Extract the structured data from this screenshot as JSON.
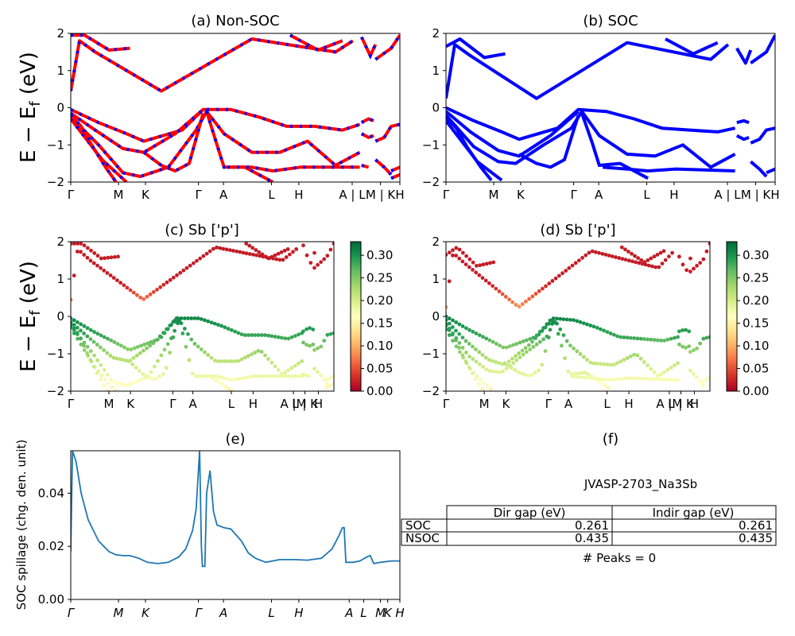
{
  "chart_data": [
    {
      "type": "line",
      "title": "(a) Non-SOC",
      "ylabel": "E − E_f (eV)",
      "ylim": [
        -2,
        2
      ],
      "yticks": [
        "2",
        "1",
        "0",
        "−1",
        "−2"
      ],
      "xticks": [
        "Γ",
        "M",
        "K",
        "Γ",
        "A",
        "L",
        "H",
        "A | L",
        "M | K",
        "H"
      ],
      "series": [
        {
          "color": "#ff0000",
          "dash_color": "#0000ff",
          "bands": [
            [
              [
                0,
                0.45
              ],
              [
                0.25,
                1.8
              ],
              [
                0.7,
                1.5
              ],
              [
                2.6,
                0.45
              ],
              [
                5.2,
                1.85
              ],
              [
                7.6,
                1.5
              ],
              [
                8.1,
                1.8
              ]
            ],
            [
              [
                0,
                1.95
              ],
              [
                0.4,
                1.95
              ],
              [
                1.1,
                1.55
              ],
              [
                1.7,
                1.6
              ]
            ],
            [
              [
                6.3,
                1.95
              ],
              [
                7.1,
                1.55
              ],
              [
                7.8,
                1.8
              ]
            ],
            [
              [
                0,
                -0.05
              ],
              [
                0.8,
                -0.4
              ],
              [
                1.6,
                -0.7
              ],
              [
                2.1,
                -0.9
              ],
              [
                3.2,
                -0.6
              ],
              [
                3.8,
                -0.05
              ],
              [
                4.6,
                -0.05
              ],
              [
                5.4,
                -0.25
              ],
              [
                6.2,
                -0.5
              ],
              [
                7.0,
                -0.5
              ],
              [
                7.8,
                -0.6
              ],
              [
                8.3,
                -0.45
              ]
            ],
            [
              [
                0,
                -0.15
              ],
              [
                0.7,
                -0.6
              ],
              [
                1.5,
                -1.1
              ],
              [
                2.1,
                -1.2
              ],
              [
                3.0,
                -0.7
              ],
              [
                3.8,
                -0.05
              ]
            ],
            [
              [
                0,
                -0.25
              ],
              [
                0.8,
                -1.0
              ],
              [
                1.5,
                -1.75
              ],
              [
                2.0,
                -1.85
              ],
              [
                2.8,
                -1.6
              ],
              [
                3.6,
                -0.6
              ],
              [
                3.9,
                -0.1
              ],
              [
                4.4,
                -0.7
              ],
              [
                5.2,
                -1.2
              ],
              [
                6.0,
                -1.2
              ],
              [
                6.8,
                -0.9
              ],
              [
                7.6,
                -1.55
              ],
              [
                8.3,
                -1.2
              ]
            ],
            [
              [
                0,
                -0.3
              ],
              [
                0.9,
                -1.4
              ],
              [
                1.6,
                -2.0
              ]
            ],
            [
              [
                3.9,
                -0.1
              ],
              [
                4.2,
                -1.0
              ],
              [
                4.4,
                -1.6
              ],
              [
                5.0,
                -1.6
              ],
              [
                5.8,
                -2.0
              ]
            ],
            [
              [
                0,
                -0.2
              ],
              [
                0.3,
                -0.5
              ],
              [
                0.6,
                -1.0
              ],
              [
                1.0,
                -1.6
              ],
              [
                1.3,
                -2.0
              ]
            ],
            [
              [
                2.1,
                -1.2
              ],
              [
                2.6,
                -1.55
              ],
              [
                3.0,
                -1.7
              ],
              [
                3.4,
                -1.5
              ],
              [
                3.8,
                -0.15
              ]
            ],
            [
              [
                4.5,
                -1.6
              ],
              [
                5.2,
                -1.6
              ],
              [
                5.8,
                -1.7
              ],
              [
                6.6,
                -1.6
              ],
              [
                8.3,
                -1.6
              ]
            ],
            [
              [
                8.35,
                -0.4
              ],
              [
                8.55,
                -0.3
              ],
              [
                8.7,
                -0.35
              ]
            ],
            [
              [
                8.35,
                -0.7
              ],
              [
                8.55,
                -0.8
              ],
              [
                8.7,
                -0.75
              ]
            ],
            [
              [
                8.35,
                -1.55
              ],
              [
                8.55,
                -1.6
              ]
            ],
            [
              [
                8.75,
                -0.9
              ],
              [
                9.0,
                -0.8
              ],
              [
                9.2,
                -0.5
              ],
              [
                9.45,
                -0.45
              ]
            ],
            [
              [
                8.75,
                -1.4
              ],
              [
                9.0,
                -1.6
              ],
              [
                9.2,
                -1.8
              ]
            ],
            [
              [
                9.2,
                -1.7
              ],
              [
                9.45,
                -1.6
              ]
            ],
            [
              [
                9.2,
                -1.9
              ],
              [
                9.45,
                -1.8
              ]
            ],
            [
              [
                8.35,
                1.9
              ],
              [
                8.6,
                1.4
              ],
              [
                8.75,
                1.7
              ]
            ],
            [
              [
                8.75,
                1.3
              ],
              [
                9.2,
                1.6
              ],
              [
                9.45,
                1.95
              ]
            ]
          ]
        }
      ]
    },
    {
      "type": "line",
      "title": "(b) SOC",
      "ylim": [
        -2,
        2
      ],
      "yticks": [
        "2",
        "1",
        "0",
        "−1",
        "−2"
      ],
      "xticks": [
        "Γ",
        "M",
        "K",
        "Γ",
        "A",
        "L",
        "H",
        "A | L",
        "M | K",
        "H"
      ],
      "series": [
        {
          "color": "#0000ff",
          "bands": [
            [
              [
                0,
                0.25
              ],
              [
                0.25,
                1.7
              ],
              [
                0.7,
                1.4
              ],
              [
                2.6,
                0.25
              ],
              [
                5.2,
                1.75
              ],
              [
                7.6,
                1.3
              ],
              [
                8.1,
                1.7
              ]
            ],
            [
              [
                0,
                1.65
              ],
              [
                0.4,
                1.85
              ],
              [
                1.1,
                1.35
              ],
              [
                1.7,
                1.45
              ]
            ],
            [
              [
                6.3,
                1.85
              ],
              [
                7.1,
                1.45
              ],
              [
                7.8,
                1.75
              ]
            ],
            [
              [
                0,
                0.0
              ],
              [
                0.8,
                -0.35
              ],
              [
                1.6,
                -0.65
              ],
              [
                2.1,
                -0.85
              ],
              [
                3.2,
                -0.55
              ],
              [
                3.8,
                -0.05
              ],
              [
                4.6,
                -0.1
              ],
              [
                5.4,
                -0.3
              ],
              [
                6.2,
                -0.55
              ],
              [
                7.0,
                -0.6
              ],
              [
                7.8,
                -0.65
              ],
              [
                8.3,
                -0.55
              ]
            ],
            [
              [
                0,
                -0.1
              ],
              [
                0.7,
                -0.65
              ],
              [
                1.5,
                -1.15
              ],
              [
                2.1,
                -1.3
              ],
              [
                3.0,
                -0.75
              ],
              [
                3.8,
                -0.1
              ]
            ],
            [
              [
                0,
                -0.2
              ],
              [
                0.8,
                -1.05
              ],
              [
                1.5,
                -1.45
              ],
              [
                2.0,
                -1.5
              ],
              [
                2.8,
                -1.0
              ],
              [
                3.6,
                -0.55
              ],
              [
                3.9,
                -0.1
              ],
              [
                4.4,
                -0.75
              ],
              [
                5.2,
                -1.25
              ],
              [
                6.0,
                -1.3
              ],
              [
                6.8,
                -1.0
              ],
              [
                7.6,
                -1.6
              ],
              [
                8.3,
                -1.25
              ]
            ],
            [
              [
                0,
                -0.35
              ],
              [
                0.9,
                -1.45
              ],
              [
                1.6,
                -1.95
              ]
            ],
            [
              [
                3.9,
                -0.15
              ],
              [
                4.2,
                -0.95
              ],
              [
                4.4,
                -1.55
              ],
              [
                5.0,
                -1.5
              ],
              [
                5.8,
                -1.9
              ]
            ],
            [
              [
                0,
                -0.25
              ],
              [
                0.3,
                -0.55
              ],
              [
                0.6,
                -1.05
              ],
              [
                1.0,
                -1.6
              ],
              [
                1.3,
                -1.95
              ]
            ],
            [
              [
                2.1,
                -1.25
              ],
              [
                2.6,
                -1.5
              ],
              [
                3.0,
                -1.6
              ],
              [
                3.4,
                -1.4
              ],
              [
                3.8,
                -0.2
              ]
            ],
            [
              [
                4.5,
                -1.6
              ],
              [
                5.2,
                -1.65
              ],
              [
                5.8,
                -1.7
              ],
              [
                6.6,
                -1.65
              ],
              [
                8.3,
                -1.7
              ]
            ],
            [
              [
                8.35,
                -0.4
              ],
              [
                8.55,
                -0.35
              ],
              [
                8.7,
                -0.4
              ]
            ],
            [
              [
                8.35,
                -0.75
              ],
              [
                8.55,
                -0.85
              ],
              [
                8.7,
                -0.8
              ]
            ],
            [
              [
                8.75,
                -0.95
              ],
              [
                9.0,
                -0.85
              ],
              [
                9.2,
                -0.6
              ],
              [
                9.45,
                -0.55
              ]
            ],
            [
              [
                8.75,
                -1.45
              ],
              [
                9.0,
                -1.65
              ],
              [
                9.2,
                -1.85
              ]
            ],
            [
              [
                9.2,
                -1.75
              ],
              [
                9.45,
                -1.65
              ]
            ],
            [
              [
                8.35,
                1.6
              ],
              [
                8.6,
                1.2
              ],
              [
                8.75,
                1.55
              ]
            ],
            [
              [
                8.75,
                1.2
              ],
              [
                9.2,
                1.5
              ],
              [
                9.45,
                1.95
              ]
            ]
          ]
        }
      ]
    },
    {
      "type": "scatter",
      "title": "(c)  Sb ['p']",
      "ylabel": "E − E_f (eV)",
      "ylim": [
        -2,
        2
      ],
      "yticks": [
        "2",
        "1",
        "0",
        "−1",
        "−2"
      ],
      "xticks": [
        "Γ",
        "M",
        "K",
        "Γ",
        "A",
        "L",
        "H",
        "A |M",
        "L | K",
        "H"
      ],
      "colorbar": {
        "min": 0.0,
        "max": 0.33,
        "ticks": [
          "0.30",
          "0.25",
          "0.20",
          "0.15",
          "0.10",
          "0.05",
          "0.00"
        ],
        "colormap": "RdYlGn"
      }
    },
    {
      "type": "scatter",
      "title": "(d) Sb ['p']",
      "ylim": [
        -2,
        2
      ],
      "yticks": [
        "2",
        "1",
        "0",
        "−1",
        "−2"
      ],
      "xticks": [
        "Γ",
        "M",
        "K",
        "Γ",
        "A",
        "L",
        "H",
        "A |M",
        "L | K",
        "H"
      ],
      "colorbar": {
        "min": 0.0,
        "max": 0.33,
        "ticks": [
          "0.30",
          "0.25",
          "0.20",
          "0.15",
          "0.10",
          "0.05",
          "0.00"
        ],
        "colormap": "RdYlGn"
      }
    },
    {
      "type": "line",
      "title": "(e)",
      "ylabel": "SOC spillage (chg. den. unit)",
      "ylim": [
        0,
        0.056
      ],
      "yticks": [
        "0.04",
        "0.02",
        "0.00"
      ],
      "xticks": [
        "Γ",
        "M",
        "K",
        "Γ",
        "A",
        "L",
        "H",
        "A",
        "L",
        "M",
        "K",
        "H"
      ],
      "x": [
        0,
        0.05,
        0.15,
        0.3,
        0.5,
        0.8,
        1.1,
        1.3,
        1.5,
        1.7,
        1.95,
        2.2,
        2.5,
        2.8,
        3.1,
        3.3,
        3.5,
        3.6,
        3.65,
        3.7,
        3.75,
        3.78,
        3.8,
        3.85,
        3.9,
        4.0,
        4.1,
        4.2,
        4.4,
        4.6,
        4.9,
        5.1,
        5.3,
        5.6,
        6.0,
        6.4,
        6.8,
        7.2,
        7.5,
        7.7,
        7.8,
        7.85,
        7.9,
        8.1,
        8.3,
        8.5,
        8.6,
        8.7,
        8.9,
        9.2,
        9.45
      ],
      "values": [
        0.018,
        0.056,
        0.052,
        0.04,
        0.03,
        0.022,
        0.018,
        0.0168,
        0.0165,
        0.0165,
        0.0155,
        0.014,
        0.0135,
        0.014,
        0.016,
        0.019,
        0.026,
        0.034,
        0.045,
        0.056,
        0.02,
        0.0125,
        0.0125,
        0.0125,
        0.04,
        0.0485,
        0.033,
        0.028,
        0.027,
        0.0265,
        0.022,
        0.0175,
        0.0155,
        0.014,
        0.015,
        0.015,
        0.0148,
        0.0155,
        0.019,
        0.024,
        0.027,
        0.027,
        0.014,
        0.014,
        0.0145,
        0.016,
        0.0165,
        0.0135,
        0.014,
        0.0145,
        0.0145
      ],
      "color": "#1f77b4"
    }
  ],
  "panel_f": {
    "title": "(f)",
    "material": "JVASP-2703_Na3Sb",
    "headers": [
      "Dir gap (eV)",
      "Indir gap (eV)"
    ],
    "rows": [
      {
        "label": "SOC",
        "dir": "0.261",
        "indir": "0.261"
      },
      {
        "label": "NSOC",
        "dir": "0.435",
        "indir": "0.435"
      }
    ],
    "peaks": "# Peaks = 0"
  },
  "colors": {
    "red": "#ff0000",
    "blue": "#0000ff",
    "spillage": "#1f77b4"
  }
}
